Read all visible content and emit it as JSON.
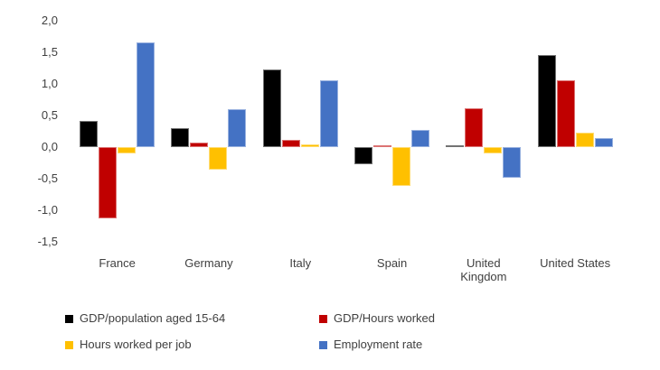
{
  "chart_data": {
    "type": "bar",
    "title": "",
    "xlabel": "",
    "ylabel": "",
    "categories": [
      "France",
      "Germany",
      "Italy",
      "Spain",
      "United Kingdom",
      "United States"
    ],
    "categories_display": [
      "France",
      "Germany",
      "Italy",
      "Spain",
      "United\nKingdom",
      "United States"
    ],
    "series": [
      {
        "name": "GDP/population aged 15-64",
        "color": "#000000",
        "values": [
          0.42,
          0.31,
          1.24,
          -0.27,
          0.04,
          1.46
        ]
      },
      {
        "name": "GDP/Hours worked",
        "color": "#c00000",
        "values": [
          -1.12,
          0.07,
          0.12,
          0.04,
          0.62,
          1.06
        ]
      },
      {
        "name": "Hours worked per job",
        "color": "#ffc000",
        "values": [
          -0.1,
          -0.36,
          0.05,
          -0.61,
          -0.1,
          0.24
        ]
      },
      {
        "name": "Employment rate",
        "color": "#4472c4",
        "values": [
          1.66,
          0.61,
          1.06,
          0.28,
          -0.48,
          0.15
        ]
      }
    ],
    "y_ticks_display": [
      "2,0",
      "1,5",
      "1,0",
      "0,5",
      "0,0",
      "-0,5",
      "-1,0",
      "-1,5"
    ],
    "y_tick_values": [
      2.0,
      1.5,
      1.0,
      0.5,
      0.0,
      -0.5,
      -1.0,
      -1.5
    ],
    "ylim": [
      -1.5,
      2.0
    ],
    "grid": false,
    "axis_line": false,
    "legend_position": "bottom-left",
    "text_color": "#404040",
    "background_color": "#ffffff"
  }
}
